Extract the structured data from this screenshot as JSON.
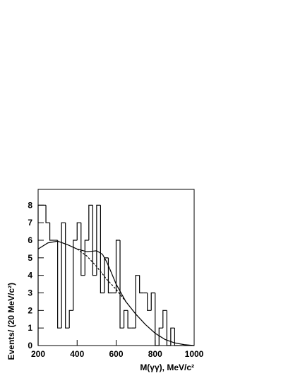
{
  "chart_data": {
    "type": "histogram",
    "x_label": "M(γγ), MeV/c²",
    "y_label": "Events/ (20 MeV/c²)",
    "bins": [
      200,
      220,
      240,
      260,
      280,
      300,
      320,
      340,
      360,
      380,
      400,
      420,
      440,
      460,
      480,
      500,
      520,
      540,
      560,
      580,
      600,
      620,
      640,
      660,
      680,
      700,
      720,
      740,
      760,
      780,
      800,
      820,
      840,
      860,
      880,
      900,
      920,
      940,
      960,
      980,
      1000
    ],
    "counts": [
      8,
      8,
      7,
      6,
      6,
      1,
      7,
      1,
      2,
      6,
      7,
      4,
      6,
      8,
      4,
      8,
      3,
      5,
      3,
      3,
      6,
      1,
      2,
      1,
      1,
      4,
      3,
      3,
      2,
      3,
      0,
      1,
      2,
      0,
      1,
      0,
      0,
      0,
      0,
      0
    ],
    "color": "#000000",
    "curves": [
      {
        "style": "solid",
        "x": [
          200,
          250,
          300,
          350,
          400,
          450,
          500,
          530,
          550,
          570,
          600,
          650,
          700,
          750,
          800,
          850,
          900,
          950,
          1000
        ],
        "values": [
          5.5,
          5.85,
          5.95,
          5.75,
          5.5,
          5.35,
          5.4,
          5.2,
          4.8,
          4.3,
          3.5,
          2.5,
          1.8,
          1.2,
          0.7,
          0.35,
          0.15,
          0.05,
          0
        ]
      },
      {
        "style": "dashed",
        "x": [
          400,
          450,
          500,
          550,
          600,
          650
        ],
        "values": [
          5.5,
          5.1,
          4.5,
          3.8,
          3.2,
          2.5
        ]
      }
    ],
    "xlim": [
      200,
      1000
    ],
    "ylim": [
      0,
      8.9
    ],
    "xticks": [
      200,
      400,
      600,
      800,
      1000
    ],
    "yticks": [
      0,
      1,
      2,
      3,
      4,
      5,
      6,
      7,
      8
    ]
  }
}
